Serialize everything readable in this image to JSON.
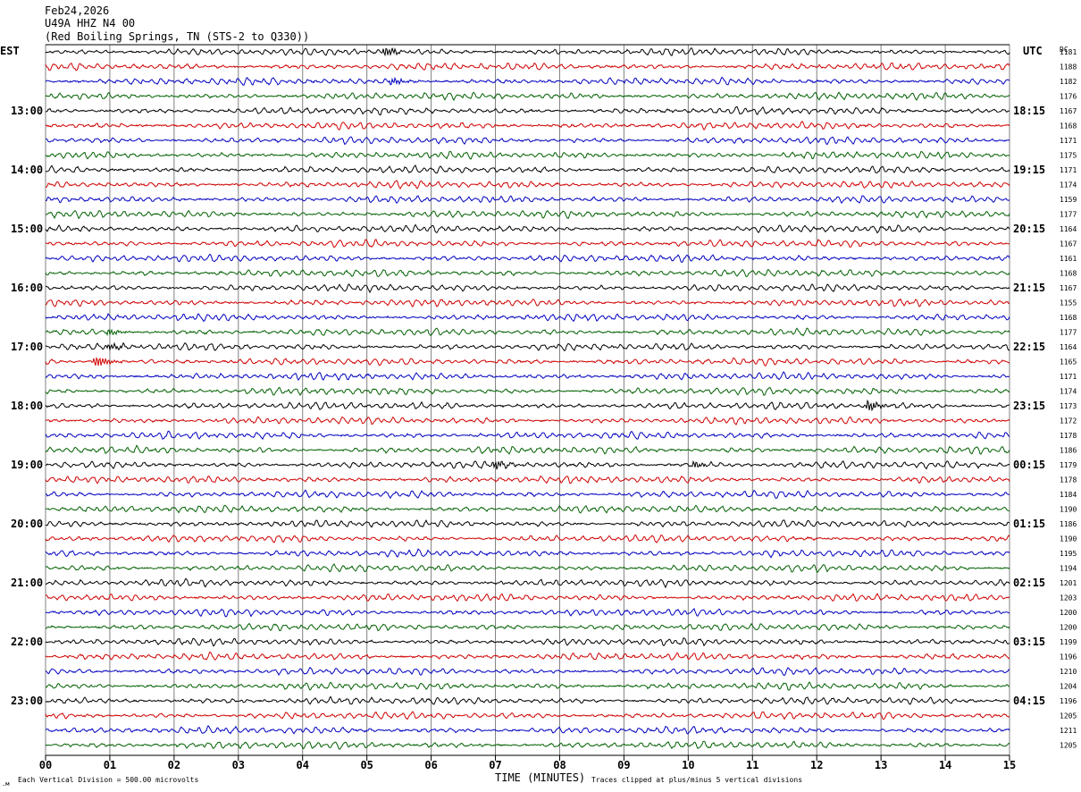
{
  "header": {
    "date": "Feb24,2026",
    "station": "U49A HHZ N4 00",
    "location": "(Red Boiling Springs, TN (STS-2 to Q330))"
  },
  "left_zone": "EST",
  "right_zone": "UTC",
  "dc_label": "DC",
  "footer": {
    "x_title": "TIME (MINUTES)",
    "scale_note": "Each Vertical Division =  500.00 microvolts",
    "clip_note": "Traces clipped at plus/minus 5 vertical divisions"
  },
  "colors": {
    "trace_cycle": [
      "#000000",
      "#d00000",
      "#0000c0",
      "#006000"
    ],
    "grid": "#808080"
  },
  "chart_data": {
    "type": "line",
    "title": "U49A HHZ N4 00",
    "xlabel": "TIME (MINUTES)",
    "xlim": [
      0,
      15
    ],
    "x_ticks": [
      "00",
      "01",
      "02",
      "03",
      "04",
      "05",
      "06",
      "07",
      "08",
      "09",
      "10",
      "11",
      "12",
      "13",
      "14",
      "15"
    ],
    "grid": true,
    "left_hour_labels": [
      "13:00",
      "14:00",
      "15:00",
      "16:00",
      "17:00",
      "18:00",
      "19:00",
      "20:00",
      "21:00",
      "22:00",
      "23:00"
    ],
    "right_hour_labels": [
      "18:15",
      "19:15",
      "20:15",
      "21:15",
      "22:15",
      "23:15",
      "00:15",
      "01:15",
      "02:15",
      "03:15",
      "04:15"
    ],
    "dc_offsets": [
      1181,
      1188,
      1182,
      1176,
      1167,
      1168,
      1171,
      1175,
      1171,
      1174,
      1159,
      1177,
      1164,
      1167,
      1161,
      1168,
      1167,
      1155,
      1168,
      1177,
      1164,
      1165,
      1171,
      1174,
      1173,
      1172,
      1178,
      1186,
      1179,
      1178,
      1184,
      1190,
      1186,
      1190,
      1195,
      1194,
      1201,
      1203,
      1200,
      1200,
      1199,
      1196,
      1210,
      1204,
      1196,
      1205,
      1211,
      1205
    ],
    "rows_per_hour": 4,
    "minutes_per_row": 15,
    "bursts": [
      {
        "row": 0,
        "minute": 5.3,
        "amp": 2.2
      },
      {
        "row": 2,
        "minute": 5.4,
        "amp": 1.6
      },
      {
        "row": 20,
        "minute": 1.0,
        "amp": 1.6
      },
      {
        "row": 21,
        "minute": 0.8,
        "amp": 2.6
      },
      {
        "row": 19,
        "minute": 1.0,
        "amp": 1.4
      },
      {
        "row": 24,
        "minute": 12.8,
        "amp": 2.6
      },
      {
        "row": 28,
        "minute": 7.0,
        "amp": 2.0
      },
      {
        "row": 28,
        "minute": 10.1,
        "amp": 1.5
      }
    ]
  }
}
